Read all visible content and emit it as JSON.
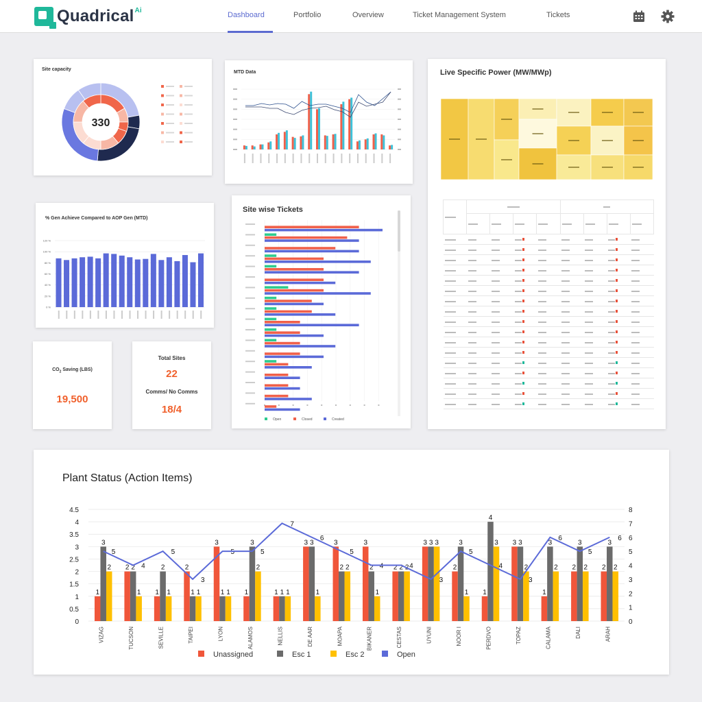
{
  "app": {
    "brand": "Quadrical",
    "brand_suffix": "Ai"
  },
  "nav": {
    "tabs": [
      {
        "label": "Dashboard",
        "active": true
      },
      {
        "label": "Portfolio",
        "active": false
      },
      {
        "label": "Overview",
        "active": false
      },
      {
        "label": "Ticket Management System",
        "active": false
      },
      {
        "label": "Tickets",
        "active": false
      }
    ],
    "icons": [
      "calendar-icon",
      "gear-icon"
    ]
  },
  "site_capacity": {
    "title": "Site capacity",
    "center_value": "330",
    "colors": {
      "outer_dark": "#1f2a4f",
      "outer_blue": "#6a78e0",
      "outer_light": "#b8c0f0",
      "inner_orange": "#f0664a",
      "inner_light": "#f7b7a5",
      "inner_pale": "#fcdcd2"
    }
  },
  "mtd": {
    "title": "MTD Data",
    "chart_data": {
      "type": "bar",
      "series": [
        {
          "values": [
            0.8,
            0.8,
            1,
            1.4,
            3,
            3.5,
            2.5,
            2.6,
            11,
            8,
            2.8,
            3,
            9,
            10,
            1.6,
            2,
            3,
            3,
            0.8
          ]
        },
        {
          "values": [
            0.7,
            0.6,
            1,
            1.6,
            3.3,
            3.8,
            2.3,
            2.8,
            11.5,
            8.2,
            2.7,
            3.1,
            9.5,
            10.3,
            1.8,
            2.2,
            3.2,
            2.8,
            0.9
          ]
        }
      ]
    }
  },
  "live_power": {
    "title": "Live Specific Power (MW/MWp)"
  },
  "gen_achieve": {
    "title": "% Gen Achieve Compared to AOP Gen (MTD)",
    "chart_data": {
      "type": "bar",
      "yticks": [
        "0 %",
        "20 %",
        "40 %",
        "60 %",
        "80 %",
        "100 %",
        "120 %"
      ],
      "values": [
        88,
        85,
        88,
        90,
        91,
        88,
        97,
        96,
        93,
        90,
        86,
        87,
        96,
        85,
        90,
        83,
        94,
        81,
        97
      ],
      "ylim": [
        0,
        120
      ],
      "color": "#5b6ad8"
    }
  },
  "site_tickets": {
    "title": "Site wise Tickets",
    "legend": [
      "Open",
      "Closed",
      "Created"
    ],
    "colors": {
      "open": "#2ecc8f",
      "closed": "#f0604a",
      "created": "#5b6ad8"
    },
    "chart_data": {
      "type": "bar",
      "series": [
        {
          "name": "Open",
          "values": [
            0,
            1,
            0,
            1,
            1,
            0,
            2,
            1,
            1,
            1,
            1,
            1,
            0,
            1,
            0,
            0,
            0,
            0
          ]
        },
        {
          "name": "Closed",
          "values": [
            8,
            7,
            6,
            5,
            5,
            5,
            5,
            4,
            4,
            3,
            3,
            3,
            3,
            2,
            2,
            2,
            2,
            1
          ]
        },
        {
          "name": "Created",
          "values": [
            10,
            8,
            8,
            9,
            8,
            6,
            9,
            5,
            6,
            8,
            5,
            6,
            5,
            4,
            3,
            3,
            4,
            3
          ]
        }
      ]
    }
  },
  "co2": {
    "label": "Saving (LBS)",
    "prefix": "CO",
    "sub": "2",
    "value": "19,500"
  },
  "sites": {
    "total_label": "Total Sites",
    "total_value": "22",
    "comms_label": "Comms/ No Comms",
    "comms_value": "18/4"
  },
  "plant_status": {
    "title": "Plant Status (Action Items)",
    "legend": [
      "Unassigned",
      "Esc 1",
      "Esc 2",
      "Open"
    ],
    "colors": {
      "unassigned": "#f0563a",
      "esc1": "#6b6b6b",
      "esc2": "#ffc000",
      "open": "#5b6ad8"
    },
    "chart_data": {
      "type": "bar",
      "categories": [
        "VIZAG",
        "TUCSON",
        "SEVILLE",
        "TAIPEI",
        "LYON",
        "ALAMOS",
        "NELLIS",
        "DE AAR",
        "MOAPA",
        "BIKANER",
        "CESTAS",
        "UYUNI",
        "NOOR I",
        "PERDVO",
        "TOPAZ",
        "CALAMA",
        "DALI",
        "ARAH"
      ],
      "yticks_left": [
        "0",
        "0.5",
        "1",
        "1.5",
        "2",
        "2.5",
        "3",
        "3.5",
        "4",
        "4.5"
      ],
      "yticks_right": [
        "0",
        "1",
        "2",
        "3",
        "4",
        "5",
        "6",
        "7",
        "8"
      ],
      "ylim_left": [
        0,
        4.5
      ],
      "ylim_right": [
        0,
        8
      ],
      "series": [
        {
          "name": "Unassigned",
          "values": [
            1,
            2,
            1,
            2,
            3,
            1,
            1,
            3,
            3,
            3,
            2,
            3,
            2,
            1,
            3,
            1,
            2,
            2
          ]
        },
        {
          "name": "Esc 1",
          "values": [
            3,
            2,
            2,
            1,
            1,
            3,
            1,
            3,
            2,
            2,
            2,
            3,
            3,
            4,
            3,
            3,
            3,
            3
          ]
        },
        {
          "name": "Esc 2",
          "values": [
            2,
            1,
            1,
            1,
            1,
            2,
            1,
            1,
            2,
            1,
            2,
            3,
            1,
            3,
            2,
            2,
            2,
            2
          ]
        },
        {
          "name": "Open",
          "axis": "right",
          "values": [
            5,
            4,
            5,
            3,
            5,
            5,
            7,
            6,
            5,
            4,
            4,
            3,
            5,
            4,
            3,
            6,
            5,
            6
          ]
        }
      ]
    }
  }
}
